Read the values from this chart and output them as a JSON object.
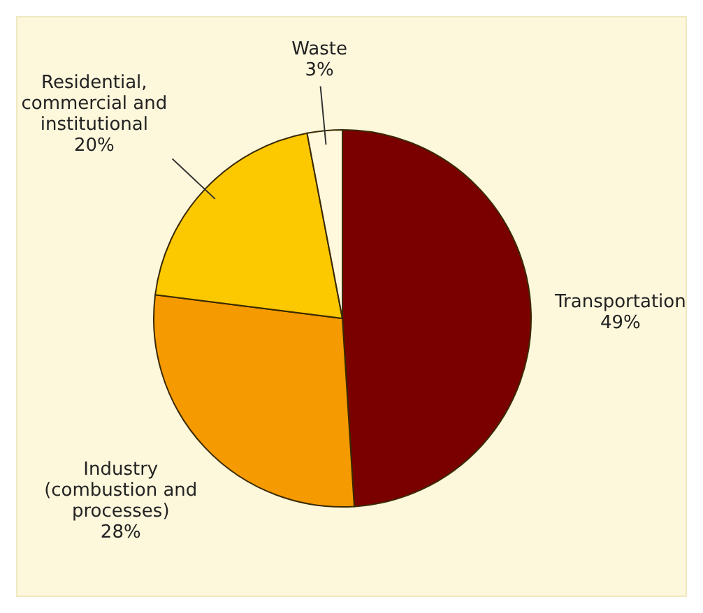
{
  "chart_data": {
    "type": "pie",
    "categories": [
      "Transportation",
      "Industry (combustion and processes)",
      "Residential, commercial and institutional",
      "Waste"
    ],
    "values": [
      49,
      28,
      20,
      3
    ],
    "colors": [
      "#7a0000",
      "#f59a00",
      "#fcc800",
      "#fff8dc"
    ],
    "value_labels": [
      "49%",
      "28%",
      "20%",
      "3%"
    ]
  }
}
